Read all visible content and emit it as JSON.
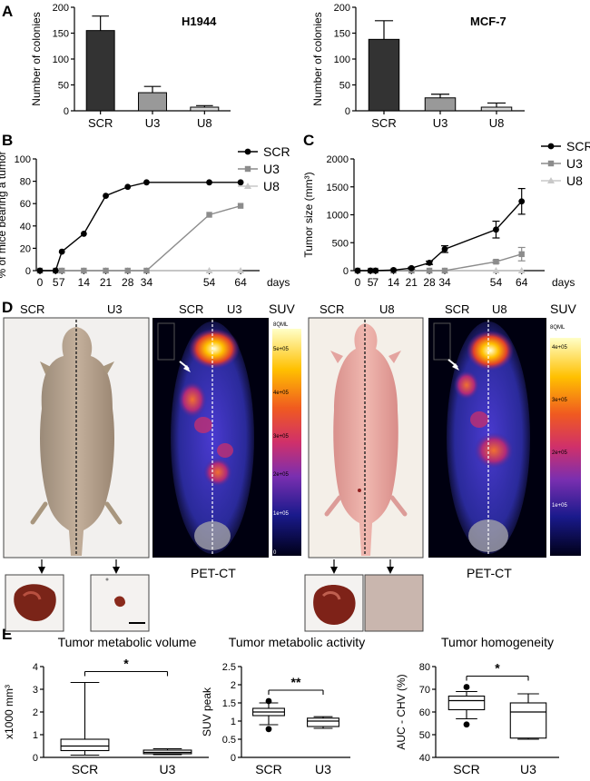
{
  "panel_labels": {
    "a": "A",
    "b": "B",
    "c": "C",
    "d": "D",
    "e": "E"
  },
  "colors": {
    "scr": "#333333",
    "u3": "#999999",
    "u8": "#d9d9d9",
    "line_scr": "#000000",
    "line_u3": "#8c8c8c",
    "line_u8": "#c8c8c8"
  },
  "chart_data": [
    {
      "id": "A1",
      "type": "bar",
      "title": "H1944",
      "ylabel": "Number of colonies",
      "categories": [
        "SCR",
        "U3",
        "U8"
      ],
      "values": [
        155,
        35,
        7
      ],
      "errors": [
        28,
        12,
        3
      ],
      "ylim": [
        0,
        200
      ],
      "yticks": [
        0,
        50,
        100,
        150,
        200
      ]
    },
    {
      "id": "A2",
      "type": "bar",
      "title": "MCF-7",
      "ylabel": "Number of colonies",
      "categories": [
        "SCR",
        "U3",
        "U8"
      ],
      "values": [
        138,
        25,
        7
      ],
      "errors": [
        36,
        7,
        8
      ],
      "ylim": [
        0,
        200
      ],
      "yticks": [
        0,
        50,
        100,
        150,
        200
      ]
    },
    {
      "id": "B",
      "type": "line",
      "ylabel": "% of mice bearing a tumor",
      "xlabel": "days",
      "x": [
        0,
        5,
        7,
        14,
        21,
        28,
        34,
        54,
        64
      ],
      "xtick_labels": [
        "0",
        "5",
        "7",
        "14",
        "21",
        "28",
        "34",
        "54",
        "64"
      ],
      "ylim": [
        0,
        100
      ],
      "yticks": [
        0,
        20,
        40,
        60,
        80,
        100
      ],
      "series": [
        {
          "name": "SCR",
          "values": [
            0,
            0,
            17,
            33,
            67,
            75,
            79,
            79,
            79
          ]
        },
        {
          "name": "U3",
          "values": [
            0,
            0,
            0,
            0,
            0,
            0,
            0,
            50,
            58
          ]
        },
        {
          "name": "U8",
          "values": [
            0,
            0,
            0,
            0,
            0,
            0,
            0,
            0,
            0
          ]
        }
      ]
    },
    {
      "id": "C",
      "type": "line",
      "ylabel": "Tumor size (mm³)",
      "xlabel": "days",
      "x": [
        0,
        5,
        7,
        14,
        21,
        28,
        34,
        54,
        64
      ],
      "xtick_labels": [
        "0",
        "5",
        "7",
        "14",
        "21",
        "28",
        "34",
        "54",
        "64"
      ],
      "ylim": [
        0,
        2000
      ],
      "yticks": [
        0,
        500,
        1000,
        1500,
        2000
      ],
      "series": [
        {
          "name": "SCR",
          "values": [
            0,
            0,
            0,
            10,
            45,
            140,
            385,
            735,
            1240
          ],
          "errors": [
            0,
            0,
            0,
            5,
            15,
            30,
            60,
            150,
            230
          ]
        },
        {
          "name": "U3",
          "values": [
            0,
            0,
            0,
            0,
            0,
            0,
            0,
            160,
            295
          ],
          "errors": [
            0,
            0,
            0,
            0,
            0,
            0,
            0,
            25,
            120
          ]
        },
        {
          "name": "U8",
          "values": [
            0,
            0,
            0,
            0,
            0,
            0,
            0,
            0,
            0
          ],
          "errors": [
            0,
            0,
            0,
            0,
            0,
            0,
            0,
            0,
            0
          ]
        }
      ]
    },
    {
      "id": "E1",
      "type": "box",
      "title": "Tumor metabolic volume",
      "ylabel": "x1000 mm³",
      "categories": [
        "SCR",
        "U3"
      ],
      "ylim": [
        0,
        4
      ],
      "yticks": [
        0,
        1,
        2,
        3,
        4
      ],
      "significance": "*",
      "boxes": [
        {
          "min": 0.1,
          "q1": 0.3,
          "median": 0.5,
          "q3": 0.8,
          "max": 3.3,
          "outliers": []
        },
        {
          "min": 0.12,
          "q1": 0.16,
          "median": 0.22,
          "q3": 0.32,
          "max": 0.38,
          "outliers": []
        }
      ]
    },
    {
      "id": "E2",
      "type": "box",
      "title": "Tumor metabolic activity",
      "ylabel": "SUV peak",
      "categories": [
        "SCR",
        "U3"
      ],
      "ylim": [
        0,
        2.5
      ],
      "yticks": [
        0,
        0.5,
        1,
        1.5,
        2,
        2.5
      ],
      "significance": "**",
      "boxes": [
        {
          "min": 0.9,
          "q1": 1.15,
          "median": 1.25,
          "q3": 1.35,
          "max": 1.5,
          "outliers": [
            0.78,
            1.55
          ]
        },
        {
          "min": 0.8,
          "q1": 0.85,
          "median": 1.0,
          "q3": 1.08,
          "max": 1.12,
          "outliers": []
        }
      ]
    },
    {
      "id": "E3",
      "type": "box",
      "title": "Tumor homogeneity",
      "ylabel": "AUC - CHV (%)",
      "categories": [
        "SCR",
        "U3"
      ],
      "ylim": [
        40,
        80
      ],
      "yticks": [
        40,
        50,
        60,
        70,
        80
      ],
      "significance": "*",
      "boxes": [
        {
          "min": 57,
          "q1": 61,
          "median": 65,
          "q3": 67,
          "max": 69,
          "outliers": [
            54.5,
            71
          ]
        },
        {
          "min": 48,
          "q1": 48.5,
          "median": 60,
          "q3": 64,
          "max": 68,
          "outliers": []
        }
      ]
    }
  ],
  "panel_d": {
    "photo_left": {
      "label_left": "SCR",
      "label_right": "U3"
    },
    "pet_left": {
      "label_left": "SCR",
      "label_right": "U3",
      "caption": "PET-CT",
      "suv_label": "SUV",
      "scale_top": "8QML",
      "scale_ticks": [
        "5e+05",
        "4e+05",
        "3e+05",
        "2e+05",
        "1e+05",
        "0"
      ]
    },
    "photo_right": {
      "label_left": "SCR",
      "label_right": "U8"
    },
    "pet_right": {
      "label_left": "SCR",
      "label_right": "U8",
      "caption": "PET-CT",
      "suv_label": "SUV",
      "scale_top": "8QML",
      "scale_ticks": [
        "4e+05",
        "3e+05",
        "2e+05",
        "1e+05"
      ]
    }
  }
}
